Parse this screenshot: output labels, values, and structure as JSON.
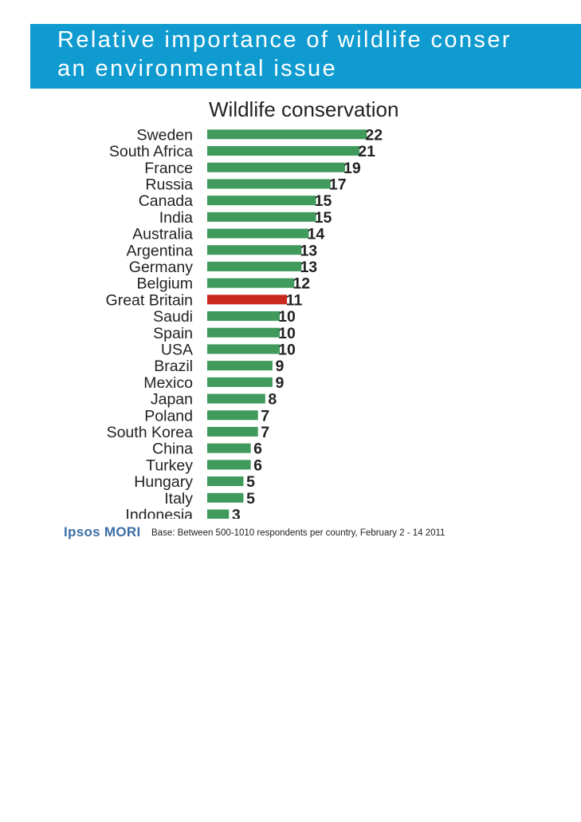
{
  "title": {
    "line1": "Relative importance of wildlife conser",
    "line2": "an environmental issue"
  },
  "logo": "Ipsos MORI",
  "footnote": "Base: Between 500-1010 respondents per country, February 2 - 14 2011",
  "colors": {
    "title_bar": "#0f9bd0",
    "bar": "#3f9a5c",
    "highlight_bar": "#c8281e"
  },
  "chart_data": {
    "type": "bar",
    "orientation": "horizontal",
    "series": [
      {
        "name": "Wildlife conservation",
        "values": [
          22,
          21,
          19,
          17,
          15,
          15,
          14,
          13,
          13,
          12,
          11,
          10,
          10,
          10,
          9,
          9,
          8,
          7,
          7,
          6,
          6,
          5,
          5,
          3
        ]
      }
    ],
    "categories": [
      "Sweden",
      "South Africa",
      "France",
      "Russia",
      "Canada",
      "India",
      "Australia",
      "Argentina",
      "Germany",
      "Belgium",
      "Great Britain",
      "Saudi",
      "Spain",
      "USA",
      "Brazil",
      "Mexico",
      "Japan",
      "Poland",
      "South Korea",
      "China",
      "Turkey",
      "Hungary",
      "Italy",
      "Indonesia"
    ],
    "highlight": "Great Britain",
    "data_labels": true,
    "grid": false,
    "legend": "none"
  }
}
